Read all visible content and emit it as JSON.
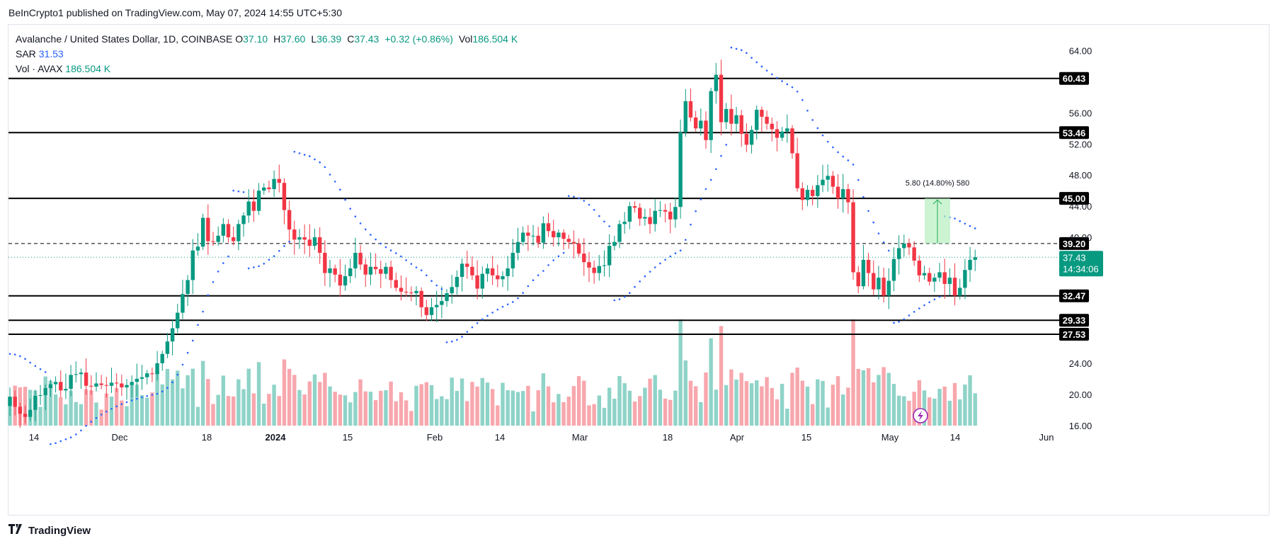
{
  "header": {
    "publisher": "BeInCrypto1 published on TradingView.com, May 07, 2024 14:55 UTC+5:30"
  },
  "legend": {
    "symbol": "Avalanche / United States Dollar, 1D, COINBASE",
    "o_label": "O",
    "o": "37.10",
    "h_label": "H",
    "h": "37.60",
    "l_label": "L",
    "l": "36.39",
    "c_label": "C",
    "c": "37.43",
    "change": "+0.32 (+0.86%)",
    "vol_label": "Vol",
    "vol": "186.504 K",
    "sar_label": "SAR",
    "sar": "31.53",
    "vol_avax_label": "Vol · AVAX",
    "vol_avax": "186.504 K"
  },
  "footer": {
    "brand": "TradingView"
  },
  "colors": {
    "up": "#089981",
    "down": "#f23645",
    "vol_up": "#8fd3c8",
    "vol_down": "#f7a7ad",
    "sar": "#2962ff",
    "level": "#000000",
    "range_box": "#b7efc0"
  },
  "chart_data": {
    "type": "candlestick",
    "y_axis_labels": [
      "64.00",
      "56.00",
      "52.00",
      "48.00",
      "44.00",
      "40.00",
      "24.00",
      "20.00",
      "16.00"
    ],
    "x_axis_labels": [
      "14",
      "Dec",
      "18",
      "2024",
      "15",
      "Feb",
      "14",
      "Mar",
      "18",
      "Apr",
      "15",
      "May",
      "14",
      "Jun"
    ],
    "levels": [
      {
        "value": 60.43,
        "label": "60.43",
        "style": "solid"
      },
      {
        "value": 53.46,
        "label": "53.46",
        "style": "solid"
      },
      {
        "value": 45.0,
        "label": "45.00",
        "style": "solid"
      },
      {
        "value": 39.2,
        "label": "39.20",
        "style": "dashed"
      },
      {
        "value": 32.47,
        "label": "32.47",
        "style": "solid"
      },
      {
        "value": 29.33,
        "label": "29.33",
        "style": "solid"
      },
      {
        "value": 27.53,
        "label": "27.53",
        "style": "solid"
      }
    ],
    "last_price": {
      "value": 37.43,
      "label": "37.43",
      "countdown": "14:34:06"
    },
    "measure": {
      "from": 39.2,
      "to": 45.0,
      "label": "5.80 (14.80%) 580"
    },
    "ohlc_closes": [
      19.5,
      18.2,
      17.3,
      16.9,
      17.8,
      19.6,
      19.7,
      20.6,
      21.1,
      21.4,
      20.3,
      20.5,
      22.3,
      22.4,
      22.6,
      20.9,
      20.8,
      21.2,
      21.0,
      20.9,
      21.3,
      21.2,
      20.7,
      21.0,
      21.4,
      21.8,
      22.0,
      22.5,
      22.4,
      23.8,
      25.0,
      26.6,
      28.3,
      30.3,
      32.7,
      34.5,
      38.3,
      38.8,
      42.5,
      39.5,
      39.4,
      40.2,
      41.7,
      40.0,
      39.5,
      41.7,
      42.8,
      44.6,
      43.4,
      46.0,
      46.4,
      46.2,
      47.5,
      47.0,
      43.5,
      41.0,
      39.7,
      40.0,
      39.7,
      38.9,
      40.0,
      38.0,
      35.4,
      36.0,
      35.2,
      33.8,
      35.0,
      36.0,
      38.0,
      36.5,
      35.2,
      36.2,
      35.9,
      35.3,
      36.2,
      34.5,
      33.5,
      33.0,
      32.9,
      32.8,
      33.1,
      31.0,
      30.0,
      31.0,
      31.3,
      31.8,
      32.8,
      33.6,
      34.9,
      36.6,
      36.2,
      35.1,
      33.4,
      35.3,
      36.0,
      35.1,
      34.6,
      35.0,
      36.0,
      38.0,
      39.4,
      40.6,
      40.2,
      40.2,
      39.3,
      41.8,
      40.8,
      40.0,
      40.6,
      39.8,
      39.4,
      39.2,
      37.9,
      36.8,
      36.1,
      35.4,
      36.3,
      36.4,
      38.9,
      39.4,
      41.7,
      42.0,
      44.0,
      43.8,
      42.4,
      42.6,
      41.7,
      43.4,
      43.5,
      43.3,
      42.3,
      43.9,
      53.5,
      57.5,
      55.4,
      54.0,
      55.0,
      52.5,
      58.8,
      60.9,
      54.8,
      56.5,
      54.6,
      55.7,
      53.3,
      51.9,
      53.8,
      56.4,
      55.5,
      54.6,
      53.9,
      52.8,
      53.6,
      54.0,
      50.8,
      46.3,
      44.8,
      46.1,
      45.3,
      46.7,
      47.4,
      47.9,
      46.5,
      45.0,
      46.2,
      44.5,
      35.5,
      33.7,
      37.1,
      35.4,
      33.3,
      34.8,
      32.5,
      34.4,
      37.2,
      38.6,
      39.2,
      38.7,
      37.0,
      35.1,
      35.4,
      34.3,
      34.8,
      35.5,
      34.0,
      34.8,
      32.5,
      33.5,
      35.8,
      37.1,
      37.43
    ]
  }
}
